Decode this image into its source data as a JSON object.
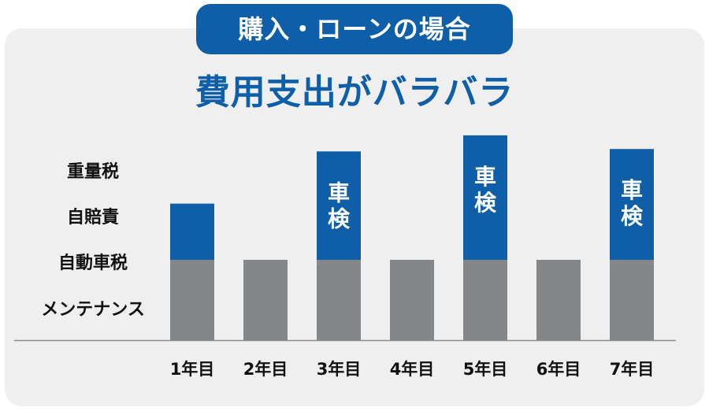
{
  "badge": {
    "text": "購入・ローンの場合"
  },
  "title": "費用支出がバラバラ",
  "categories_left": [
    "重量税",
    "自賠責",
    "自動車税",
    "メンテナンス"
  ],
  "colors": {
    "base": "#848789",
    "inspection": "#0f5fa8",
    "accent": "#0f5fa8"
  },
  "chart_data": {
    "type": "bar",
    "stacked": true,
    "categories": [
      "1年目",
      "2年目",
      "3年目",
      "4年目",
      "5年目",
      "6年目",
      "7年目"
    ],
    "series": [
      {
        "values": [
          1,
          1,
          1,
          1,
          1,
          1,
          1
        ]
      },
      {
        "values": [
          0.7,
          0,
          1.35,
          0,
          1.55,
          0,
          1.38
        ]
      }
    ],
    "bar_labels": [
      "",
      "",
      "車検",
      "",
      "車検",
      "",
      "車検"
    ],
    "ylim": [
      0,
      2.6
    ],
    "grid": false,
    "legend": "none"
  }
}
